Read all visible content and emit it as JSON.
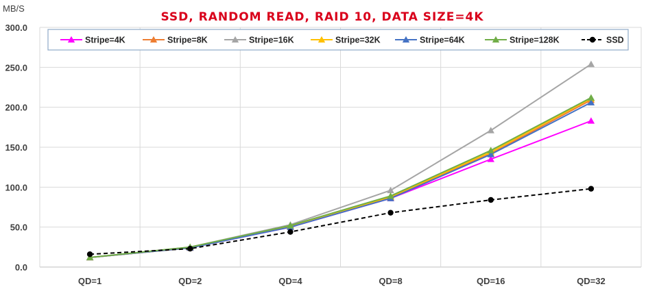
{
  "chart_data": {
    "type": "line",
    "title": "SSD, RANDOM READ, RAID 10, DATA SIZE=4K",
    "ylabel": "MB/S",
    "xlabel": "",
    "categories": [
      "QD=1",
      "QD=2",
      "QD=4",
      "QD=8",
      "QD=16",
      "QD=32"
    ],
    "ylim": [
      0,
      300
    ],
    "yticks": [
      "0.0",
      "50.0",
      "100.0",
      "150.0",
      "200.0",
      "250.0",
      "300.0"
    ],
    "grid": true,
    "legend_position": "top",
    "series": [
      {
        "name": "Stripe=4K",
        "color": "#ff00ff",
        "marker": "triangle",
        "dash": false,
        "values": [
          12,
          24,
          50,
          86,
          135,
          183
        ]
      },
      {
        "name": "Stripe=8K",
        "color": "#ed7d31",
        "marker": "triangle",
        "dash": false,
        "values": [
          12,
          24,
          51,
          87,
          142,
          209
        ]
      },
      {
        "name": "Stripe=16K",
        "color": "#a5a5a5",
        "marker": "triangle",
        "dash": false,
        "values": [
          12,
          25,
          53,
          96,
          171,
          254
        ]
      },
      {
        "name": "Stripe=32K",
        "color": "#ffc000",
        "marker": "triangle",
        "dash": false,
        "values": [
          12,
          24,
          51,
          88,
          144,
          211
        ]
      },
      {
        "name": "Stripe=64K",
        "color": "#4472c4",
        "marker": "triangle",
        "dash": false,
        "values": [
          12,
          24,
          50,
          86,
          141,
          206
        ]
      },
      {
        "name": "Stripe=128K",
        "color": "#70ad47",
        "marker": "triangle",
        "dash": false,
        "values": [
          12,
          25,
          52,
          89,
          146,
          212
        ]
      },
      {
        "name": "SSD",
        "color": "#000000",
        "marker": "circle",
        "dash": true,
        "values": [
          16,
          23,
          44,
          68,
          84,
          98
        ]
      }
    ]
  }
}
